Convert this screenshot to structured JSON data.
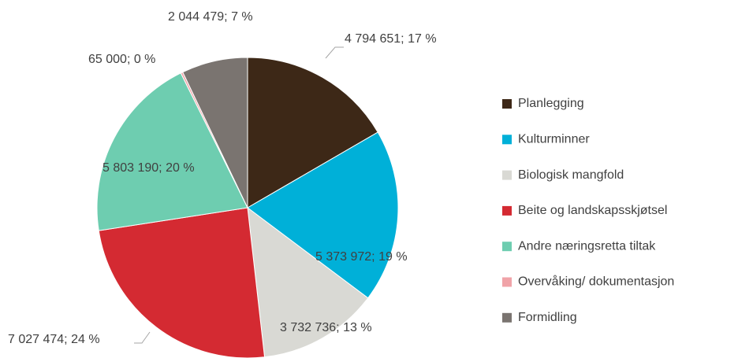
{
  "chart_data": {
    "type": "pie",
    "categories": [
      "Planlegging",
      "Kulturminner",
      "Biologisk mangfold",
      "Beite og landskapsskjøtsel",
      "Andre næringsretta tiltak",
      "Overvåking/ dokumentasjon",
      "Formidling"
    ],
    "values": [
      4794651,
      5373972,
      3732736,
      7027474,
      5803190,
      65000,
      2044479
    ],
    "value_labels": [
      "4 794 651; 17 %",
      "5 373 972; 19 %",
      "3 732 736; 13 %",
      "7 027 474; 24 %",
      "5 803 190; 20 %",
      "65 000; 0 %",
      "2 044 479; 7 %"
    ],
    "colors": [
      "#3d2817",
      "#00b0d8",
      "#d9d9d4",
      "#d42a32",
      "#6ecdb0",
      "#f0a3a8",
      "#7a7470"
    ],
    "legend": "right"
  }
}
